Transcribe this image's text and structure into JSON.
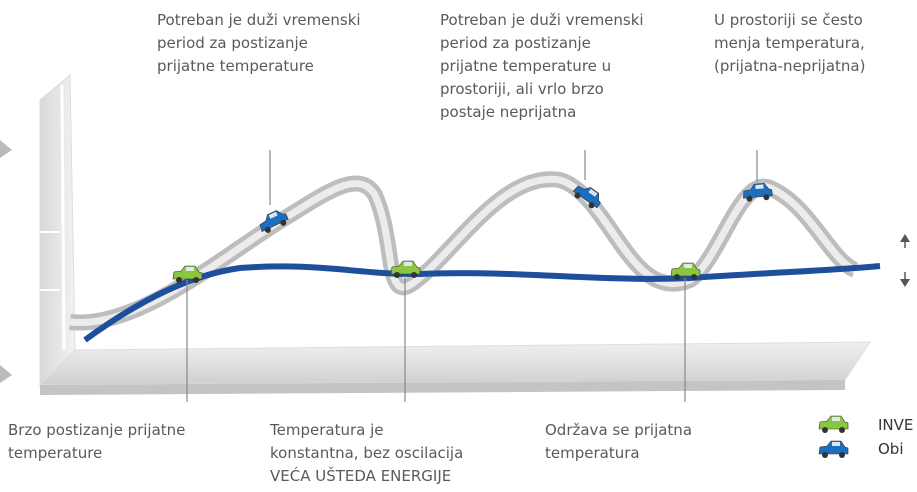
{
  "annotations": {
    "top": [
      {
        "lines": [
          "Potreban je duži vremenski",
          "period za postizanje",
          "prijatne temperature"
        ]
      },
      {
        "lines": [
          "Potreban je duži vremenski",
          "period za postizanje",
          "prijatne  temperature u",
          "prostoriji, ali  vrlo brzo",
          "postaje neprijatna"
        ]
      },
      {
        "lines": [
          "U prostoriji se često",
          "menja temperatura,",
          "(prijatna-neprijatna)"
        ]
      }
    ],
    "bottom": [
      {
        "lines": [
          "Brzo postizanje prijatne",
          "temperature"
        ]
      },
      {
        "lines": [
          "Temperatura je",
          "konstantna, bez  oscilacija",
          "VEĆA UŠTEDA ENERGIJE"
        ]
      },
      {
        "lines": [
          "Održava se prijatna",
          "temperatura"
        ]
      }
    ]
  },
  "legend": [
    {
      "label": "INVE"
    },
    {
      "label": "Obi"
    }
  ]
}
